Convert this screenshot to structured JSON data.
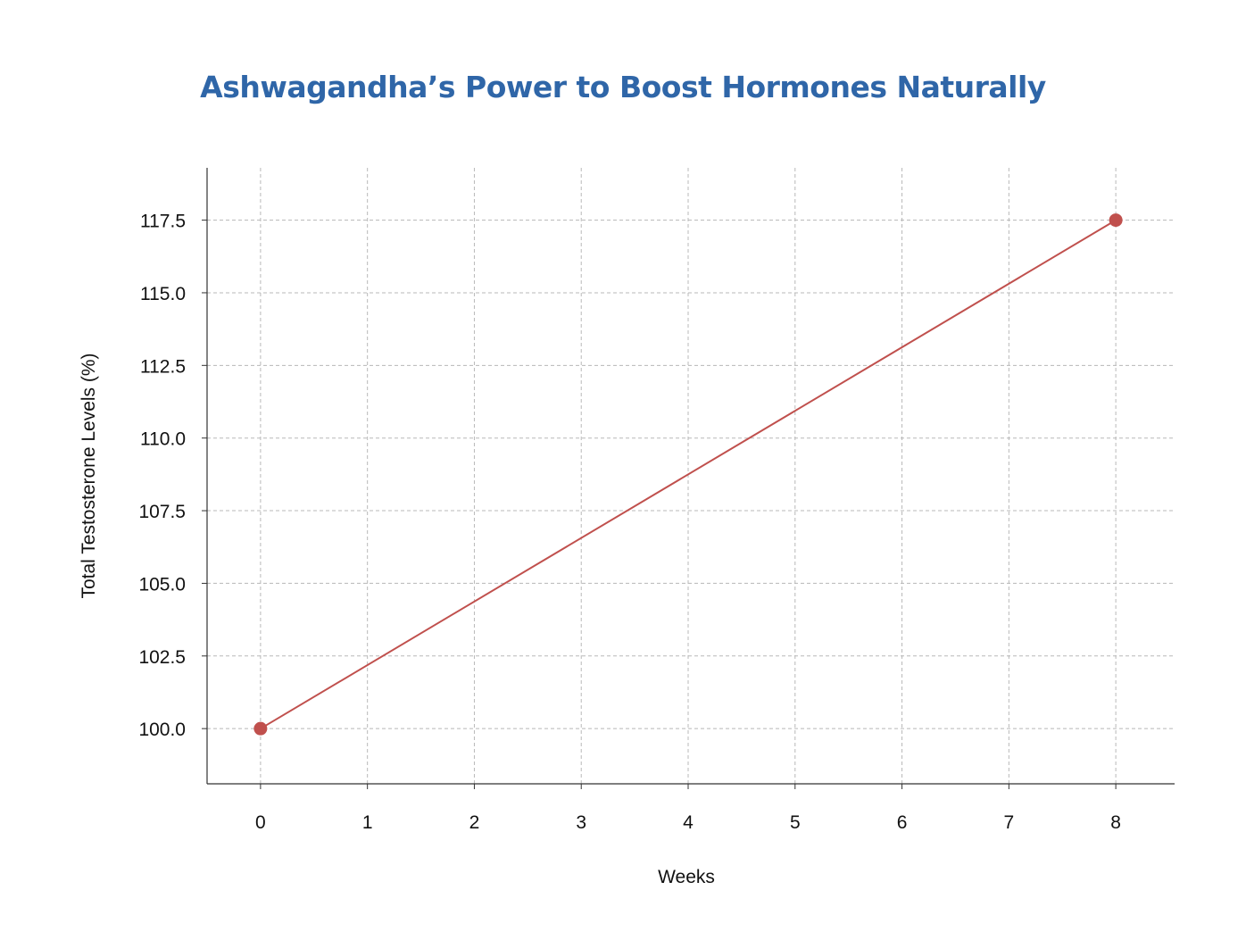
{
  "colors": {
    "title": "#2f66a8",
    "series": "#c0504d",
    "axis": "#333333",
    "grid": "#b8b8b8",
    "text": "#111111"
  },
  "chart_data": {
    "type": "line",
    "title": "Ashwagandha’s Power to Boost Hormones Naturally",
    "xlabel": "Weeks",
    "ylabel": "Total Testosterone Levels (%)",
    "xlim": [
      -0.5,
      8.55
    ],
    "ylim": [
      98.1,
      119.3
    ],
    "x_ticks": [
      0,
      1,
      2,
      3,
      4,
      5,
      6,
      7,
      8
    ],
    "x_tick_labels": [
      "0",
      "1",
      "2",
      "3",
      "4",
      "5",
      "6",
      "7",
      "8"
    ],
    "y_ticks": [
      100.0,
      102.5,
      105.0,
      107.5,
      110.0,
      112.5,
      115.0,
      117.5
    ],
    "y_tick_labels": [
      "100.0",
      "102.5",
      "105.0",
      "107.5",
      "110.0",
      "112.5",
      "115.0",
      "117.5"
    ],
    "grid": true,
    "legend": "none",
    "series": [
      {
        "x": [
          0,
          8
        ],
        "values": [
          100.0,
          117.5
        ],
        "marker": "circle"
      }
    ]
  }
}
